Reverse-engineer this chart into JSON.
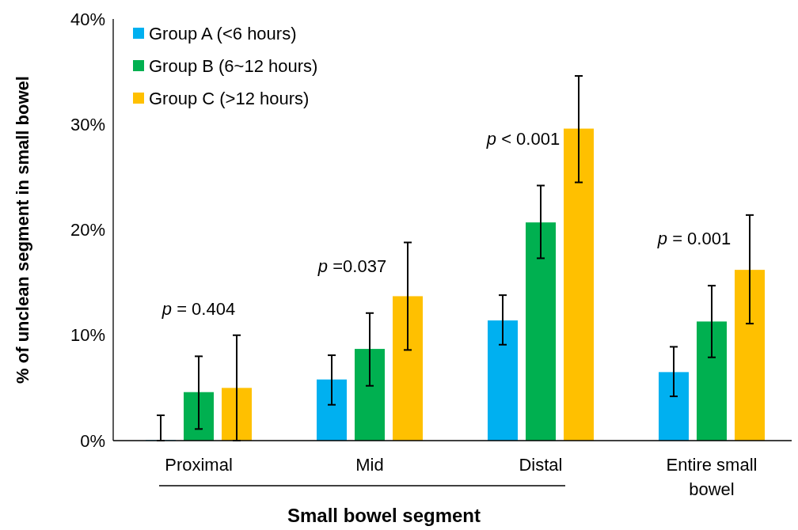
{
  "chart_data": {
    "type": "bar",
    "xlabel": "Small bowel segment",
    "ylabel": "% of unclean segment in small bowel",
    "categories": [
      "Proximal",
      "Mid",
      "Distal",
      "Entire small bowel"
    ],
    "series": [
      {
        "name": "Group A (<6 hours)",
        "color": "#00b0f0",
        "values": [
          0,
          5.8,
          11.4,
          6.5
        ],
        "errors": [
          [
            0,
            2.4
          ],
          [
            3.4,
            8.1
          ],
          [
            9.1,
            13.8
          ],
          [
            4.2,
            8.9
          ]
        ]
      },
      {
        "name": "Group B (6~12 hours)",
        "color": "#00b050",
        "values": [
          4.6,
          8.7,
          20.7,
          11.3
        ],
        "errors": [
          [
            1.1,
            8.0
          ],
          [
            5.2,
            12.1
          ],
          [
            17.3,
            24.2
          ],
          [
            7.9,
            14.7
          ]
        ]
      },
      {
        "name": "Group C (>12 hours)",
        "color": "#ffc000",
        "values": [
          5.0,
          13.7,
          29.6,
          16.2
        ],
        "errors": [
          [
            0,
            10.0
          ],
          [
            8.6,
            18.8
          ],
          [
            24.5,
            34.6
          ],
          [
            11.1,
            21.4
          ]
        ]
      }
    ],
    "ylim": [
      0,
      40
    ],
    "yticks": [
      {
        "value": 0,
        "label": "0%"
      },
      {
        "value": 10,
        "label": "10%"
      },
      {
        "value": 20,
        "label": "20%"
      },
      {
        "value": 30,
        "label": "30%"
      },
      {
        "value": 40,
        "label": "40%"
      }
    ],
    "annotations": [
      "p = 0.404",
      "p =0.037",
      "p < 0.001",
      "p = 0.001"
    ],
    "legend": "top left",
    "grid": false
  }
}
